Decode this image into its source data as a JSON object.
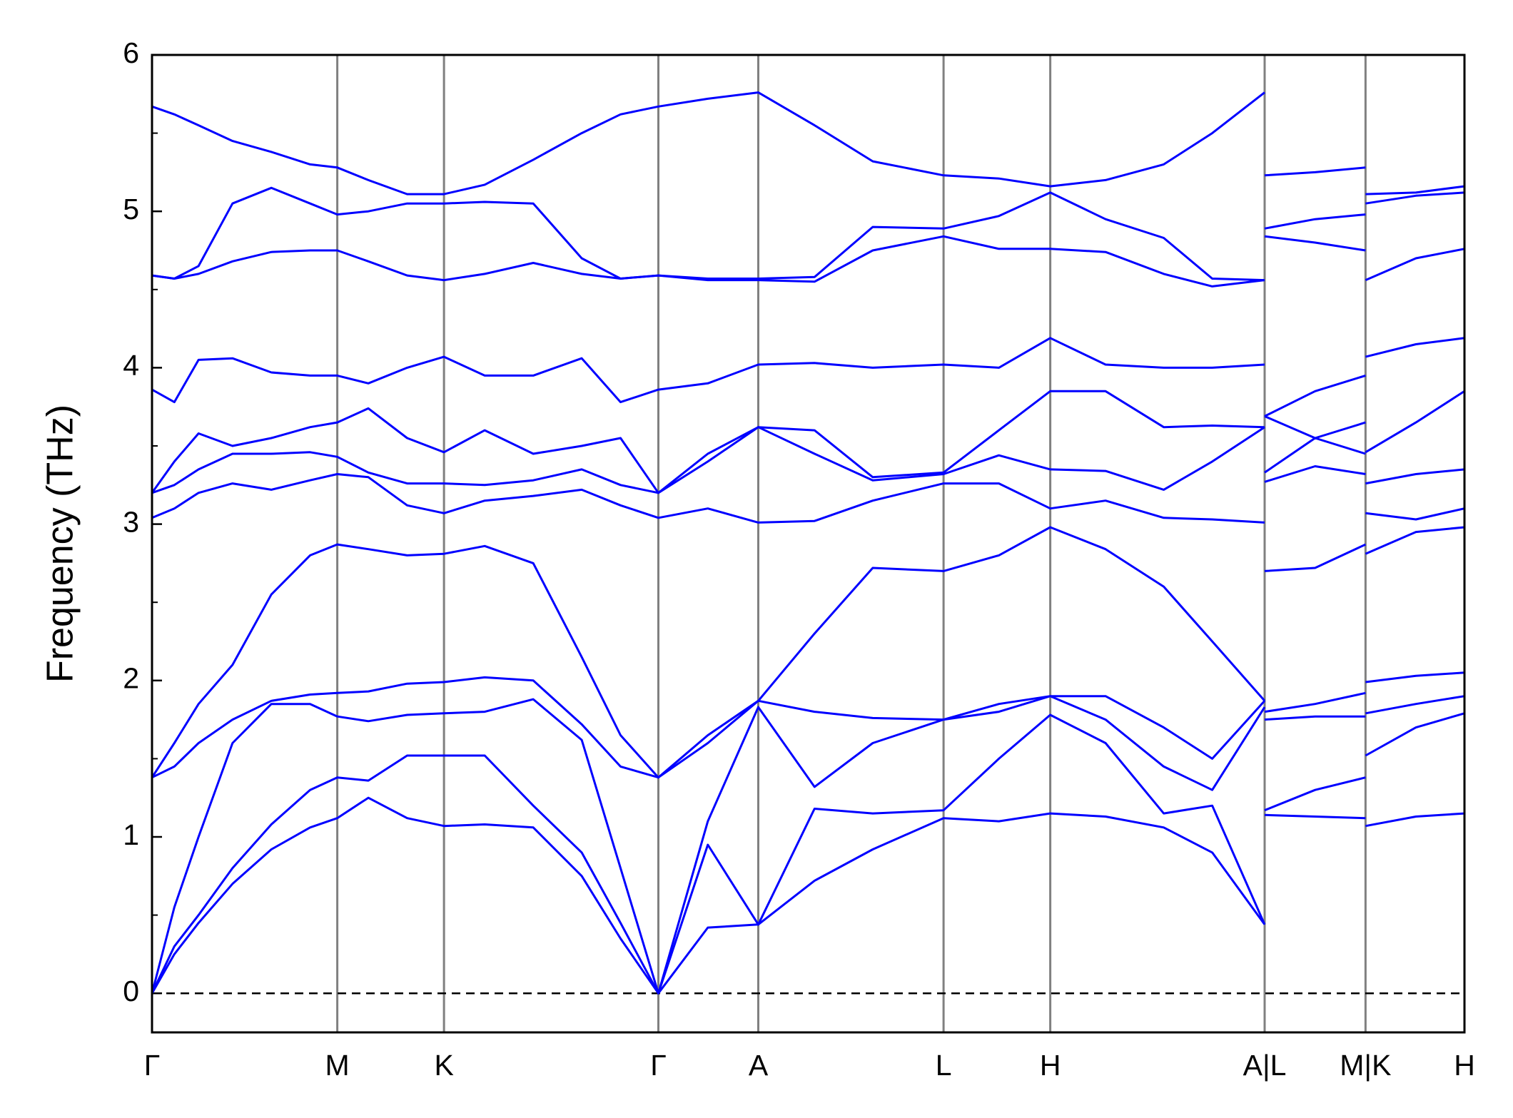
{
  "chart_data": {
    "type": "line",
    "ylabel": "Frequency (THz)",
    "x": [
      0,
      0.23,
      0.48,
      0.83,
      1.23,
      1.63,
      1.91,
      2.23,
      2.63,
      3.01,
      3.43,
      3.93,
      4.43,
      4.83,
      5.22,
      5.73,
      6.25,
      6.83,
      7.43,
      8.16,
      8.73,
      9.26,
      9.83,
      10.43,
      10.93,
      11.47,
      11.47,
      11.47,
      11.99,
      12.51,
      12.51,
      12.51,
      13.03,
      13.53
    ],
    "xlim": [
      0,
      13.53
    ],
    "xticks": [
      {
        "value": 0,
        "label": "Γ"
      },
      {
        "value": 1.91,
        "label": "M"
      },
      {
        "value": 3.01,
        "label": "K"
      },
      {
        "value": 5.22,
        "label": "Γ"
      },
      {
        "value": 6.25,
        "label": "A"
      },
      {
        "value": 8.16,
        "label": "L"
      },
      {
        "value": 9.26,
        "label": "H"
      },
      {
        "value": 11.47,
        "label": "A|L"
      },
      {
        "value": 12.51,
        "label": "M|K"
      },
      {
        "value": 13.53,
        "label": "H"
      }
    ],
    "ylim": [
      -0.25,
      6
    ],
    "yticks": [
      0,
      1,
      2,
      3,
      4,
      5,
      6
    ],
    "hlines": [
      0
    ],
    "series": [
      {
        "color": "#0000ff",
        "values": [
          0,
          0.25,
          0.45,
          0.7,
          0.92,
          1.06,
          1.12,
          1.25,
          1.12,
          1.07,
          1.08,
          1.06,
          0.75,
          0.35,
          0,
          0.42,
          0.44,
          0.72,
          0.92,
          1.12,
          1.1,
          1.15,
          1.13,
          1.06,
          0.9,
          0.44,
          null,
          1.14,
          1.13,
          1.12,
          null,
          1.07,
          1.13,
          1.15
        ]
      },
      {
        "color": "#0000ff",
        "values": [
          0,
          0.3,
          0.5,
          0.8,
          1.08,
          1.3,
          1.38,
          1.36,
          1.52,
          1.52,
          1.52,
          1.2,
          0.9,
          0.45,
          0,
          0.95,
          0.44,
          1.18,
          1.15,
          1.17,
          1.5,
          1.78,
          1.6,
          1.15,
          1.2,
          0.44,
          null,
          1.17,
          1.3,
          1.38,
          null,
          1.52,
          1.7,
          1.79
        ]
      },
      {
        "color": "#0000ff",
        "values": [
          0,
          0.55,
          1.0,
          1.6,
          1.85,
          1.85,
          1.77,
          1.74,
          1.78,
          1.79,
          1.8,
          1.88,
          1.62,
          0.8,
          0,
          1.1,
          1.83,
          1.32,
          1.6,
          1.75,
          1.8,
          1.9,
          1.75,
          1.45,
          1.3,
          1.83,
          null,
          1.75,
          1.77,
          1.77,
          null,
          1.79,
          1.85,
          1.9
        ]
      },
      {
        "color": "#0000ff",
        "values": [
          1.38,
          1.45,
          1.6,
          1.75,
          1.87,
          1.91,
          1.92,
          1.93,
          1.98,
          1.99,
          2.02,
          2.0,
          1.72,
          1.45,
          1.38,
          1.6,
          1.87,
          1.8,
          1.76,
          1.75,
          1.85,
          1.9,
          1.9,
          1.7,
          1.5,
          1.87,
          null,
          1.8,
          1.85,
          1.92,
          null,
          1.99,
          2.03,
          2.05
        ]
      },
      {
        "color": "#0000ff",
        "values": [
          1.38,
          1.6,
          1.85,
          2.1,
          2.55,
          2.8,
          2.87,
          2.84,
          2.8,
          2.81,
          2.86,
          2.75,
          2.15,
          1.65,
          1.38,
          1.65,
          1.87,
          2.3,
          2.72,
          2.7,
          2.8,
          2.98,
          2.84,
          2.6,
          2.25,
          1.87,
          null,
          2.7,
          2.72,
          2.87,
          null,
          2.81,
          2.95,
          2.98
        ]
      },
      {
        "color": "#0000ff",
        "values": [
          3.04,
          3.1,
          3.2,
          3.26,
          3.22,
          3.28,
          3.32,
          3.3,
          3.12,
          3.07,
          3.15,
          3.18,
          3.22,
          3.12,
          3.04,
          3.1,
          3.01,
          3.02,
          3.15,
          3.26,
          3.26,
          3.1,
          3.15,
          3.04,
          3.03,
          3.01,
          null,
          3.27,
          3.37,
          3.32,
          null,
          3.07,
          3.03,
          3.1
        ]
      },
      {
        "color": "#0000ff",
        "values": [
          3.2,
          3.25,
          3.35,
          3.45,
          3.45,
          3.46,
          3.43,
          3.33,
          3.26,
          3.26,
          3.25,
          3.28,
          3.35,
          3.25,
          3.2,
          3.4,
          3.62,
          3.45,
          3.28,
          3.32,
          3.44,
          3.35,
          3.34,
          3.22,
          3.4,
          3.62,
          null,
          3.33,
          3.55,
          3.45,
          null,
          3.26,
          3.32,
          3.35
        ]
      },
      {
        "color": "#0000ff",
        "values": [
          3.2,
          3.4,
          3.58,
          3.5,
          3.55,
          3.62,
          3.65,
          3.74,
          3.55,
          3.46,
          3.6,
          3.45,
          3.5,
          3.55,
          3.2,
          3.45,
          3.62,
          3.6,
          3.3,
          3.33,
          3.6,
          3.85,
          3.85,
          3.62,
          3.63,
          3.62,
          null,
          3.69,
          3.55,
          3.65,
          null,
          3.46,
          3.65,
          3.85
        ]
      },
      {
        "color": "#0000ff",
        "values": [
          3.86,
          3.78,
          4.05,
          4.06,
          3.97,
          3.95,
          3.95,
          3.9,
          4.0,
          4.07,
          3.95,
          3.95,
          4.06,
          3.78,
          3.86,
          3.9,
          4.02,
          4.03,
          4.0,
          4.02,
          4.0,
          4.19,
          4.02,
          4.0,
          4.0,
          4.02,
          null,
          3.69,
          3.85,
          3.95,
          null,
          4.07,
          4.15,
          4.19
        ]
      },
      {
        "color": "#0000ff",
        "values": [
          4.59,
          4.57,
          4.6,
          4.68,
          4.74,
          4.75,
          4.75,
          4.68,
          4.59,
          4.56,
          4.6,
          4.67,
          4.6,
          4.57,
          4.59,
          4.56,
          4.56,
          4.55,
          4.75,
          4.84,
          4.76,
          4.76,
          4.74,
          4.6,
          4.52,
          4.56,
          null,
          4.84,
          4.8,
          4.75,
          null,
          4.56,
          4.7,
          4.76
        ]
      },
      {
        "color": "#0000ff",
        "values": [
          4.59,
          4.57,
          4.65,
          5.05,
          5.15,
          5.05,
          4.98,
          5.0,
          5.05,
          5.05,
          5.06,
          5.05,
          4.7,
          4.57,
          4.59,
          4.57,
          4.57,
          4.58,
          4.9,
          4.89,
          4.97,
          5.12,
          4.95,
          4.83,
          4.57,
          4.56,
          null,
          4.89,
          4.95,
          4.98,
          null,
          5.05,
          5.1,
          5.12
        ]
      },
      {
        "color": "#0000ff",
        "values": [
          5.67,
          5.62,
          5.55,
          5.45,
          5.38,
          5.3,
          5.28,
          5.2,
          5.11,
          5.11,
          5.17,
          5.33,
          5.5,
          5.62,
          5.67,
          5.72,
          5.76,
          5.55,
          5.32,
          5.23,
          5.21,
          5.16,
          5.2,
          5.3,
          5.5,
          5.76,
          null,
          5.23,
          5.25,
          5.28,
          null,
          5.11,
          5.12,
          5.16
        ]
      }
    ]
  }
}
